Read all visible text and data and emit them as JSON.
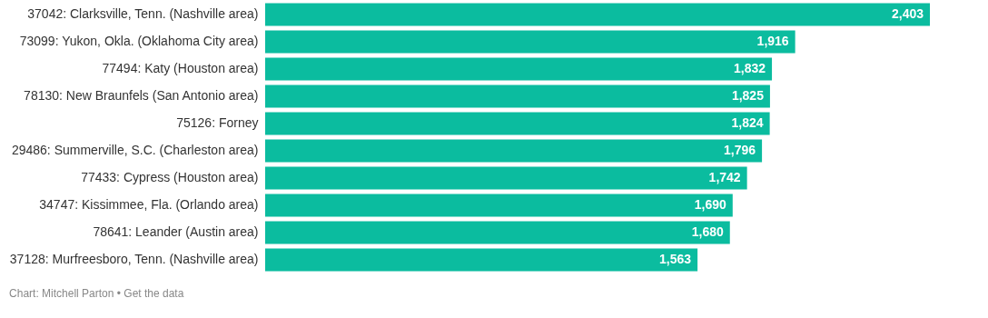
{
  "chart_data": {
    "type": "bar",
    "orientation": "horizontal",
    "categories": [
      "37042: Clarksville, Tenn. (Nashville area)",
      "73099: Yukon, Okla. (Oklahoma City area)",
      "77494: Katy (Houston area)",
      "78130: New Braunfels (San Antonio area)",
      "75126: Forney",
      "29486: Summerville, S.C. (Charleston area)",
      "77433: Cypress (Houston area)",
      "34747: Kissimmee, Fla. (Orlando area)",
      "78641: Leander (Austin area)",
      "37128: Murfreesboro, Tenn. (Nashville area)"
    ],
    "values": [
      2403,
      1916,
      1832,
      1825,
      1824,
      1796,
      1742,
      1690,
      1680,
      1563
    ],
    "color": "#0bbc9f",
    "value_labels": [
      "2,403",
      "1,916",
      "1,832",
      "1,825",
      "1,824",
      "1,796",
      "1,742",
      "1,690",
      "1,680",
      "1,563"
    ],
    "grid": false,
    "annotations": [
      "Chart: Mitchell Parton • Get the data"
    ]
  }
}
